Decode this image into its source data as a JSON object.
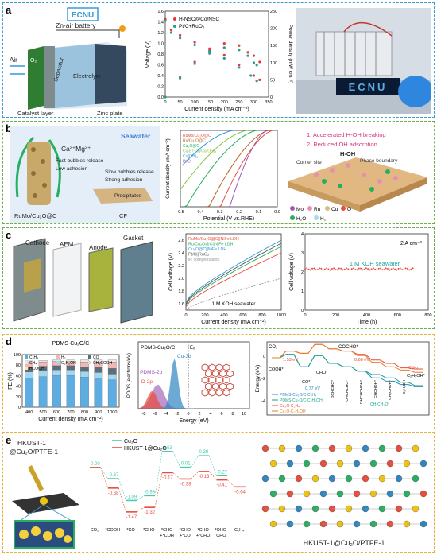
{
  "panels": {
    "a": "a",
    "b": "b",
    "c": "c",
    "d": "d",
    "e": "e"
  },
  "colors": {
    "a": "#3a9bd5",
    "b": "#6ab04c",
    "c": "#6ab04c",
    "d": "#e8b23a",
    "e": "#e8b23a"
  },
  "a": {
    "battery": {
      "brand": "ECNU",
      "title": "Zn-air battery",
      "air": "Air",
      "o2": "O₂",
      "separator": "Separator",
      "electrolyte": "Electrolyte",
      "catalyst": "Catalyst layer",
      "zinc": "Zinc plate"
    },
    "photo_text": "ECNU",
    "chart": {
      "type": "line",
      "xlabel": "Current density (mA cm⁻²)",
      "ylabel": "Voltage (V)",
      "y2label": "Power density (mW cm⁻²)",
      "xticks": [
        "0",
        "50",
        "100",
        "150",
        "200",
        "250",
        "300",
        "350"
      ],
      "yticks": [
        "0.0",
        "0.2",
        "0.4",
        "0.6",
        "0.8",
        "1.0",
        "1.2",
        "1.4",
        "1.6"
      ],
      "y2ticks": [
        "0",
        "50",
        "100",
        "150",
        "200",
        "250"
      ],
      "xlim": [
        0,
        350
      ],
      "ylim": [
        0,
        1.6
      ],
      "y2lim": [
        0,
        250
      ],
      "series": [
        {
          "name": "H-NSC@Co/NSC",
          "color": "#e5383b",
          "voltage": [
            [
              0,
              1.45
            ],
            [
              20,
              1.25
            ],
            [
              50,
              1.15
            ],
            [
              100,
              1.02
            ],
            [
              150,
              0.9
            ],
            [
              200,
              0.78
            ],
            [
              250,
              0.6
            ],
            [
              300,
              0.4
            ],
            [
              320,
              0.32
            ]
          ],
          "power": [
            [
              0,
              0
            ],
            [
              50,
              57
            ],
            [
              100,
              102
            ],
            [
              150,
              135
            ],
            [
              200,
              156
            ],
            [
              250,
              150
            ],
            [
              280,
              130
            ],
            [
              300,
              120
            ],
            [
              320,
              102
            ]
          ]
        },
        {
          "name": "Pt/C+RuO₂",
          "color": "#2a9d8f",
          "voltage": [
            [
              0,
              1.42
            ],
            [
              20,
              1.2
            ],
            [
              50,
              1.1
            ],
            [
              100,
              0.97
            ],
            [
              150,
              0.85
            ],
            [
              200,
              0.72
            ],
            [
              250,
              0.55
            ],
            [
              290,
              0.4
            ],
            [
              310,
              0.3
            ]
          ],
          "power": [
            [
              0,
              0
            ],
            [
              50,
              55
            ],
            [
              100,
              97
            ],
            [
              150,
              127
            ],
            [
              200,
              144
            ],
            [
              250,
              137
            ],
            [
              280,
              120
            ],
            [
              300,
              100
            ],
            [
              310,
              93
            ]
          ]
        }
      ]
    }
  },
  "b": {
    "schem": {
      "seawater": "Seawater",
      "ions": "Ca²⁺Mg²⁺",
      "fast": "Fast bubbles release",
      "low": "Low adhesion",
      "slow": "Slow bubbles release",
      "strong": "Strong adhesion",
      "precip": "Precipitates",
      "rumo": "RuMo/Cu₂O@C",
      "cf": "CF"
    },
    "chart": {
      "type": "line",
      "xlabel": "Potential  (V vs.RHE)",
      "ylabel": "Current density (mA cm⁻²)",
      "xticks": [
        "-0.5",
        "-0.4",
        "-0.3",
        "-0.2",
        "-0.1",
        "0.0"
      ],
      "xlim": [
        -0.5,
        0.0
      ],
      "ylim": [
        -500,
        0
      ],
      "series": [
        {
          "name": "RuMo/Cu₂O@C",
          "color": "#e74c3c",
          "onset": -0.02,
          "slope": 0.28
        },
        {
          "name": "Ru/Cu₂O@C",
          "color": "#b5651d",
          "onset": -0.04,
          "slope": 0.32
        },
        {
          "name": "Cu₂O@C",
          "color": "#27ae60",
          "onset": -0.1,
          "slope": 0.38
        },
        {
          "name": "Cu-BTC@Cu(OH)₂",
          "color": "#8bc34a",
          "onset": -0.15,
          "slope": 0.42
        },
        {
          "name": "Cu(OH)₂",
          "color": "#3498db",
          "onset": -0.22,
          "slope": 0.45
        },
        {
          "name": "Pt/C",
          "color": "#9b59b6",
          "onset": -0.05,
          "slope": 0.2
        }
      ]
    },
    "mech": {
      "l1": "1. Accelerated H-OH breaking",
      "l2": "2. Reduced OH adsorption",
      "corner": "Corner site",
      "ph": "Phase boundary",
      "hoh": "H-OH",
      "legend": [
        "Mo",
        "Ru",
        "Cu",
        "O"
      ],
      "legend2": [
        "H₂O",
        "H₂"
      ]
    }
  },
  "c": {
    "schem": {
      "cathode": "Cathode",
      "aem": "AEM",
      "anode": "Anode",
      "gasket": "Gasket"
    },
    "chart1": {
      "type": "line",
      "xlabel": "Current density (mA cm⁻²)",
      "ylabel": "Cell voltage (V)",
      "note": "1 M KOH seawater",
      "xticks": [
        "0",
        "200",
        "400",
        "600",
        "800",
        "1000"
      ],
      "yticks": [
        "1.6",
        "1.8",
        "2.0",
        "2.2",
        "2.4",
        "2.6"
      ],
      "xlim": [
        0,
        1000
      ],
      "ylim": [
        1.5,
        2.7
      ],
      "series": [
        {
          "name": "RuMo/Cu₂O@C||NiFe LDH",
          "color": "#e74c3c",
          "start": 1.55,
          "end": 2.4
        },
        {
          "name": "Ru/Cu₂O@C||NiFe LDH",
          "color": "#27ae60",
          "start": 1.58,
          "end": 2.5
        },
        {
          "name": "Cu₂O@C||NiFe LDH",
          "color": "#3498db",
          "start": 1.62,
          "end": 2.6
        },
        {
          "name": "Pt/C||RuO₂",
          "color": "#555555",
          "start": 1.6,
          "end": 2.55
        },
        {
          "name": "iR compensation",
          "color": "#999999",
          "start": 1.5,
          "end": 2.0
        }
      ]
    },
    "chart2": {
      "type": "line",
      "xlabel": "Time (h)",
      "ylabel": "Cell voltage (V)",
      "note": "1 M KOH seawater",
      "current": "2 A cm⁻²",
      "xticks": [
        "0",
        "200",
        "400",
        "600",
        "800"
      ],
      "yticks": [
        "0",
        "1",
        "2",
        "3",
        "4"
      ],
      "xlim": [
        0,
        800
      ],
      "ylim": [
        0,
        4
      ],
      "series": [
        {
          "name": "stability",
          "color": "#e74c3c",
          "value": 2.15
        }
      ]
    }
  },
  "d": {
    "fe": {
      "type": "bar",
      "title": "PDMS-Cu₂O/C",
      "xlabel": "Current density (mA cm⁻²)",
      "ylabel": "FE (%)",
      "categories": [
        "400",
        "500",
        "600",
        "700",
        "800",
        "900",
        "1000"
      ],
      "yticks": [
        "0",
        "20",
        "40",
        "60",
        "80",
        "100"
      ],
      "ylim": [
        0,
        100
      ],
      "legend": [
        "C₂H₄",
        "H₂",
        "CO",
        "CH₄",
        "C₂H₅OH",
        "CH₃COOH",
        "HCOOH"
      ],
      "series": [
        {
          "name": "C₂H₄",
          "color": "#5dade2",
          "values": [
            55,
            58,
            60,
            60,
            57,
            55,
            52
          ]
        },
        {
          "name": "C₂H₅OH",
          "color": "#9fd8f0",
          "values": [
            12,
            12,
            11,
            11,
            11,
            11,
            11
          ]
        },
        {
          "name": "CO",
          "color": "#5d6d7e",
          "values": [
            10,
            8,
            8,
            8,
            9,
            10,
            11
          ]
        },
        {
          "name": "H₂",
          "color": "#f5b7b1",
          "values": [
            8,
            8,
            8,
            8,
            9,
            10,
            12
          ]
        },
        {
          "name": "CH₄",
          "color": "#e5e7e9",
          "values": [
            3,
            3,
            3,
            3,
            4,
            4,
            4
          ]
        }
      ]
    },
    "pdos": {
      "title": "PDMS-Cu₂O/C",
      "xlabel": "Energy (eV)",
      "ylabel": "PDOS (electrons/eV)",
      "ef": "Eₓ",
      "cu": "Cu-3d",
      "pdms": "PDMS-2p",
      "o2p": "O-2p",
      "xticks": [
        "-8",
        "-6",
        "-4",
        "-2",
        "0",
        "2",
        "4",
        "6",
        "8",
        "10"
      ]
    },
    "energy": {
      "ylabel": "Energy (eV)",
      "co2": "CO₂",
      "cocho": "COCHO*",
      "v1": "1.53 eV",
      "v2": "0.77 eV",
      "v3": "0.68 eV",
      "cooh": "COOH*",
      "co": "CO*",
      "cho": "CHO*",
      "c2h4": "C₂H₄",
      "c2h5oh": "C₂H₅OH*",
      "legend": [
        "PDMS-Cu₂O/C-C₂H₄",
        "PDMS-Cu₂O/C-C₂H₅OH",
        "Cu₂O-C₂H₄",
        "Cu₂O-C₂H₅OH"
      ],
      "inter": [
        "OCHCHO*",
        "OHCHCHO*",
        "OHCHCHOH*",
        "CHCHOH*",
        "CH₂CHOH*",
        "C₂H₅OH"
      ],
      "ch2ch2o": "CH₂CH₂O*",
      "yticks": [
        "0",
        "-2",
        "-4"
      ]
    }
  },
  "e": {
    "schem": {
      "l1": "HKUST-1",
      "l2": "@Cu₂O/PTFE-1"
    },
    "chart": {
      "legend": [
        "Cu₂O",
        "HKUST-1@Cu₂O"
      ],
      "xlabels": [
        "CO₂",
        "*COOH",
        "*CO",
        "*CHO",
        "*CHO\n+*COH",
        "*CHO\n+*CO",
        "*CHO\n+*CHO",
        "*OHC-\nCHO",
        "C₂H₄"
      ],
      "cu2o": [
        0.0,
        -0.37,
        -1.09,
        -0.93,
        0.53,
        0.01,
        0.39,
        -0.27,
        null
      ],
      "hk": [
        0.0,
        -0.68,
        -1.47,
        -1.32,
        -0.17,
        -0.38,
        -0.13,
        -0.41,
        -0.64
      ],
      "cu2o_labels": [
        "0.00",
        "-0.37",
        "-1.09",
        "-0.93",
        "0.53",
        "0.01",
        "0.39",
        "-0.27",
        ""
      ],
      "hk_labels": [
        "",
        "-0.68",
        "-1.47",
        "-1.32",
        "-0.17",
        "-0.38",
        "-0.13",
        "-0.41",
        "-0.64"
      ]
    },
    "right_label": "HKUST-1@Cu₂O/PTFE-1"
  }
}
